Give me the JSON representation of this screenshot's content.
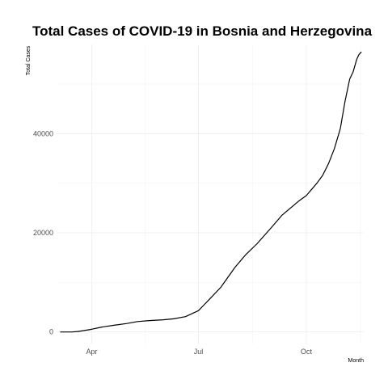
{
  "chart_data": {
    "type": "line",
    "title": "Total Cases of COVID-19 in Bosnia and Herzegovina",
    "xlabel": "Month",
    "ylabel": "Total Cases",
    "x_ticks": [
      "Apr",
      "Jul",
      "Oct"
    ],
    "x_tick_dates": [
      "2020-04-01",
      "2020-07-01",
      "2020-10-01"
    ],
    "xlim": [
      "2020-03-02",
      "2020-11-19"
    ],
    "y_ticks": [
      0,
      20000,
      40000
    ],
    "ylim": [
      -2500,
      58000
    ],
    "grid": true,
    "legend": "none",
    "series": [
      {
        "x": [
          "2020-03-05",
          "2020-03-15",
          "2020-03-20",
          "2020-03-31",
          "2020-04-10",
          "2020-04-20",
          "2020-05-01",
          "2020-05-10",
          "2020-05-20",
          "2020-06-01",
          "2020-06-10",
          "2020-06-20",
          "2020-07-01",
          "2020-07-10",
          "2020-07-20",
          "2020-08-01",
          "2020-08-10",
          "2020-08-20",
          "2020-09-01",
          "2020-09-10",
          "2020-09-20",
          "2020-09-25",
          "2020-10-01",
          "2020-10-10",
          "2020-10-15",
          "2020-10-20",
          "2020-10-25",
          "2020-10-30",
          "2020-11-03",
          "2020-11-07",
          "2020-11-10",
          "2020-11-13",
          "2020-11-15",
          "2020-11-17"
        ],
        "y": [
          0,
          0,
          100,
          500,
          1000,
          1350,
          1700,
          2100,
          2300,
          2450,
          2650,
          3100,
          4300,
          6500,
          9000,
          13000,
          15500,
          17800,
          21000,
          23500,
          25500,
          26500,
          27500,
          30000,
          31600,
          34000,
          37000,
          41000,
          46500,
          51000,
          52500,
          55000,
          56000,
          56500
        ]
      }
    ]
  }
}
